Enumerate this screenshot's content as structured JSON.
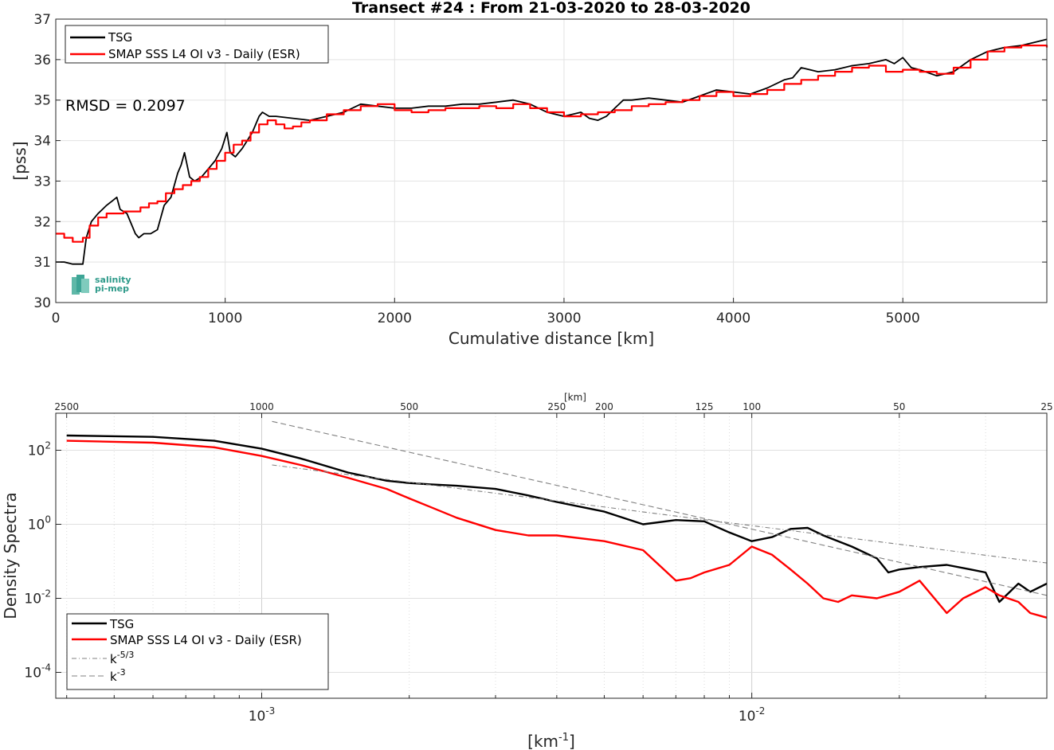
{
  "chart_data": [
    {
      "type": "line",
      "title": "Transect #24 : From 21-03-2020 to 28-03-2020",
      "xlabel": "Cumulative distance [km]",
      "ylabel": "[pss]",
      "xlim": [
        0,
        5850
      ],
      "ylim": [
        30,
        37
      ],
      "xticks": [
        0,
        1000,
        2000,
        3000,
        4000,
        5000
      ],
      "yticks": [
        30,
        31,
        32,
        33,
        34,
        35,
        36,
        37
      ],
      "grid": true,
      "legend_position": "top-left",
      "annotation": "RMSD = 0.2097",
      "logo_text": [
        "salinity",
        "pi-mep"
      ],
      "series": [
        {
          "name": "TSG",
          "color": "#000000",
          "x": [
            0,
            50,
            100,
            160,
            180,
            210,
            250,
            300,
            330,
            360,
            380,
            420,
            450,
            470,
            490,
            520,
            560,
            600,
            640,
            680,
            720,
            740,
            760,
            790,
            820,
            860,
            900,
            940,
            980,
            1010,
            1030,
            1060,
            1100,
            1130,
            1160,
            1200,
            1220,
            1260,
            1300,
            1400,
            1500,
            1600,
            1700,
            1800,
            1900,
            2000,
            2100,
            2200,
            2300,
            2400,
            2500,
            2600,
            2700,
            2800,
            2900,
            3000,
            3100,
            3150,
            3200,
            3250,
            3300,
            3350,
            3400,
            3500,
            3600,
            3700,
            3800,
            3900,
            4000,
            4100,
            4200,
            4300,
            4350,
            4400,
            4500,
            4600,
            4700,
            4800,
            4900,
            4950,
            5000,
            5050,
            5100,
            5200,
            5300,
            5400,
            5500,
            5600,
            5700,
            5800,
            5850
          ],
          "y": [
            31.0,
            31.0,
            30.95,
            30.95,
            31.6,
            32.0,
            32.2,
            32.4,
            32.5,
            32.6,
            32.3,
            32.2,
            31.9,
            31.7,
            31.6,
            31.7,
            31.7,
            31.8,
            32.4,
            32.6,
            33.2,
            33.4,
            33.7,
            33.1,
            33.0,
            33.1,
            33.3,
            33.5,
            33.8,
            34.2,
            33.7,
            33.6,
            33.8,
            34.0,
            34.2,
            34.6,
            34.7,
            34.6,
            34.6,
            34.55,
            34.5,
            34.6,
            34.7,
            34.9,
            34.85,
            34.8,
            34.8,
            34.85,
            34.85,
            34.9,
            34.9,
            34.95,
            35.0,
            34.9,
            34.7,
            34.6,
            34.7,
            34.55,
            34.5,
            34.6,
            34.8,
            35.0,
            35.0,
            35.05,
            35.0,
            34.95,
            35.1,
            35.25,
            35.2,
            35.15,
            35.3,
            35.5,
            35.55,
            35.8,
            35.7,
            35.75,
            35.85,
            35.9,
            36.0,
            35.9,
            36.05,
            35.8,
            35.75,
            35.6,
            35.7,
            36.0,
            36.2,
            36.3,
            36.35,
            36.45,
            36.5
          ]
        },
        {
          "name": "SMAP SSS L4 OI v3 - Daily (ESR)",
          "color": "#ff0000",
          "x": [
            0,
            50,
            100,
            160,
            200,
            250,
            300,
            400,
            500,
            550,
            600,
            650,
            700,
            750,
            800,
            850,
            900,
            950,
            1000,
            1050,
            1100,
            1150,
            1200,
            1250,
            1300,
            1350,
            1400,
            1450,
            1500,
            1600,
            1700,
            1800,
            1900,
            2000,
            2100,
            2200,
            2300,
            2400,
            2500,
            2600,
            2700,
            2800,
            2900,
            3000,
            3100,
            3200,
            3300,
            3400,
            3500,
            3600,
            3700,
            3800,
            3900,
            4000,
            4100,
            4200,
            4300,
            4400,
            4500,
            4600,
            4700,
            4800,
            4900,
            5000,
            5100,
            5200,
            5300,
            5400,
            5500,
            5600,
            5700,
            5800,
            5850
          ],
          "y": [
            31.7,
            31.6,
            31.5,
            31.6,
            31.9,
            32.1,
            32.2,
            32.25,
            32.35,
            32.45,
            32.5,
            32.7,
            32.8,
            32.9,
            33.0,
            33.1,
            33.3,
            33.5,
            33.7,
            33.9,
            34.0,
            34.2,
            34.4,
            34.5,
            34.4,
            34.3,
            34.35,
            34.45,
            34.5,
            34.65,
            34.75,
            34.85,
            34.9,
            34.75,
            34.7,
            34.75,
            34.8,
            34.8,
            34.85,
            34.8,
            34.9,
            34.8,
            34.7,
            34.6,
            34.65,
            34.7,
            34.75,
            34.85,
            34.9,
            34.95,
            35.0,
            35.1,
            35.2,
            35.1,
            35.15,
            35.25,
            35.4,
            35.5,
            35.6,
            35.7,
            35.8,
            35.85,
            35.7,
            35.75,
            35.7,
            35.65,
            35.8,
            36.0,
            36.2,
            36.3,
            36.35,
            36.35,
            36.3
          ]
        }
      ]
    },
    {
      "type": "line",
      "xlabel": "[km",
      "xlabel_superscript": "-1",
      "xlabel_close": "]",
      "ylabel": "Density Spectra",
      "xscale": "log",
      "yscale": "log",
      "xlim": [
        0.00038,
        0.04
      ],
      "ylim": [
        2e-05,
        1000
      ],
      "xticks": [
        {
          "value": 0.001,
          "base": "10",
          "exp": "-3"
        },
        {
          "value": 0.01,
          "base": "10",
          "exp": "-2"
        }
      ],
      "yticks": [
        {
          "value": 0.0001,
          "base": "10",
          "exp": "-4"
        },
        {
          "value": 0.01,
          "base": "10",
          "exp": "-2"
        },
        {
          "value": 1,
          "base": "10",
          "exp": "0"
        },
        {
          "value": 100,
          "base": "10",
          "exp": "2"
        }
      ],
      "top_axis_label": "[km]",
      "top_axis_ticks": [
        2500,
        1000,
        500,
        250,
        200,
        125,
        100,
        50,
        25
      ],
      "grid": true,
      "legend_position": "bottom-left",
      "series": [
        {
          "name": "TSG",
          "color": "#000000",
          "x": [
            0.0004,
            0.0006,
            0.0008,
            0.001,
            0.0012,
            0.0015,
            0.0018,
            0.002,
            0.0022,
            0.0025,
            0.003,
            0.0035,
            0.004,
            0.005,
            0.006,
            0.007,
            0.008,
            0.009,
            0.01,
            0.011,
            0.012,
            0.013,
            0.014,
            0.016,
            0.018,
            0.019,
            0.02,
            0.022,
            0.025,
            0.028,
            0.03,
            0.032,
            0.035,
            0.037,
            0.04
          ],
          "y": [
            250,
            230,
            180,
            110,
            60,
            25,
            15,
            13,
            12,
            11,
            9,
            6,
            4,
            2.2,
            1.0,
            1.3,
            1.2,
            0.6,
            0.35,
            0.45,
            0.75,
            0.8,
            0.5,
            0.25,
            0.12,
            0.05,
            0.06,
            0.07,
            0.08,
            0.06,
            0.05,
            0.008,
            0.025,
            0.015,
            0.025
          ]
        },
        {
          "name": "SMAP SSS L4 OI v3 - Daily (ESR)",
          "color": "#ff0000",
          "x": [
            0.0004,
            0.0006,
            0.0008,
            0.001,
            0.0012,
            0.0015,
            0.0018,
            0.002,
            0.0022,
            0.0025,
            0.003,
            0.0035,
            0.004,
            0.005,
            0.006,
            0.007,
            0.0075,
            0.008,
            0.009,
            0.01,
            0.011,
            0.012,
            0.013,
            0.014,
            0.015,
            0.016,
            0.018,
            0.02,
            0.022,
            0.025,
            0.027,
            0.03,
            0.032,
            0.035,
            0.037,
            0.04
          ],
          "y": [
            180,
            160,
            120,
            70,
            40,
            18,
            9,
            5,
            3,
            1.5,
            0.7,
            0.5,
            0.5,
            0.35,
            0.2,
            0.03,
            0.035,
            0.05,
            0.08,
            0.25,
            0.15,
            0.06,
            0.025,
            0.01,
            0.008,
            0.012,
            0.01,
            0.015,
            0.03,
            0.004,
            0.01,
            0.02,
            0.012,
            0.008,
            0.004,
            0.003
          ]
        },
        {
          "name": "k",
          "label_exp": "-5/3",
          "color": "#808080",
          "dash": "dashdot",
          "x": [
            0.00105,
            0.04
          ],
          "y": [
            40,
            0.09
          ]
        },
        {
          "name": "k",
          "label_exp": "-3",
          "color": "#808080",
          "dash": "dashed",
          "x": [
            0.00105,
            0.04
          ],
          "y": [
            600,
            0.012
          ]
        }
      ]
    }
  ]
}
